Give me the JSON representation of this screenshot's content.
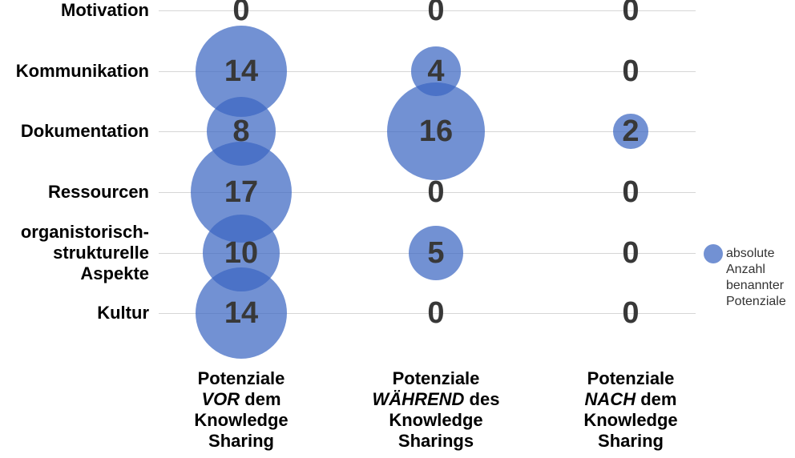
{
  "chart_data": {
    "type": "bubble",
    "title": "",
    "xlabel": "",
    "ylabel": "",
    "grid": true,
    "legend_position": "right",
    "bubble_area_proportional_to_value": true,
    "categories": [
      "Motivation",
      "Kommunikation",
      "Dokumentation",
      "Ressourcen",
      "organistorisch-\nstrukturelle\nAspekte",
      "Kultur"
    ],
    "series": [
      {
        "name": "Potenziale VOR dem Knowledge Sharing",
        "label_lines": [
          [
            {
              "text": "Potenziale",
              "italic": false
            }
          ],
          [
            {
              "text": "VOR",
              "italic": true
            },
            {
              "text": " dem",
              "italic": false
            }
          ],
          [
            {
              "text": "Knowledge",
              "italic": false
            }
          ],
          [
            {
              "text": "Sharing",
              "italic": false
            }
          ]
        ],
        "values": [
          0,
          14,
          8,
          17,
          10,
          14
        ]
      },
      {
        "name": "Potenziale WÄHREND des Knowledge Sharings",
        "label_lines": [
          [
            {
              "text": "Potenziale",
              "italic": false
            }
          ],
          [
            {
              "text": "WÄHREND",
              "italic": true
            },
            {
              "text": " des",
              "italic": false
            }
          ],
          [
            {
              "text": "Knowledge",
              "italic": false
            }
          ],
          [
            {
              "text": "Sharings",
              "italic": false
            }
          ]
        ],
        "values": [
          0,
          4,
          16,
          0,
          5,
          0
        ]
      },
      {
        "name": "Potenziale NACH dem Knowledge Sharing",
        "label_lines": [
          [
            {
              "text": "Potenziale",
              "italic": false
            }
          ],
          [
            {
              "text": "NACH",
              "italic": true
            },
            {
              "text": " dem",
              "italic": false
            }
          ],
          [
            {
              "text": "Knowledge",
              "italic": false
            }
          ],
          [
            {
              "text": "Sharing",
              "italic": false
            }
          ]
        ],
        "values": [
          0,
          0,
          2,
          0,
          0,
          0
        ]
      }
    ],
    "legend": {
      "swatch_icon": "bubble-swatch",
      "lines": [
        "absolute",
        "Anzahl",
        "benannter",
        "Potenziale"
      ]
    }
  },
  "colors": {
    "bubble_fill_rgb": "59,102,194",
    "bubble_fill_hex": "#3B66C2",
    "bubble_opacity": 0.72,
    "value_text": "#383838",
    "gridline": "#D6D6D6",
    "label_text": "#000000",
    "legend_text": "#333333"
  }
}
